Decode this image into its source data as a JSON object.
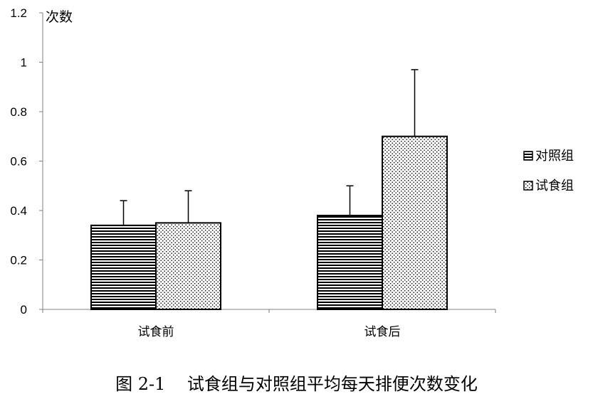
{
  "chart_data": {
    "type": "bar",
    "ylabel": "次数",
    "ylim": [
      0,
      1.2
    ],
    "yticks": [
      "0",
      "0.2",
      "0.4",
      "0.6",
      "0.8",
      "1",
      "1.2"
    ],
    "categories": [
      "试食前",
      "试食后"
    ],
    "series": [
      {
        "name": "对照组",
        "pattern": "horizontal-stripes",
        "values": [
          0.34,
          0.38
        ],
        "error": [
          0.1,
          0.12
        ]
      },
      {
        "name": "试食组",
        "pattern": "dots",
        "values": [
          0.35,
          0.7
        ],
        "error": [
          0.13,
          0.27
        ]
      }
    ],
    "legend_position": "right",
    "grid": false
  },
  "caption": "图 2-1    试食组与对照组平均每天排便次数变化"
}
